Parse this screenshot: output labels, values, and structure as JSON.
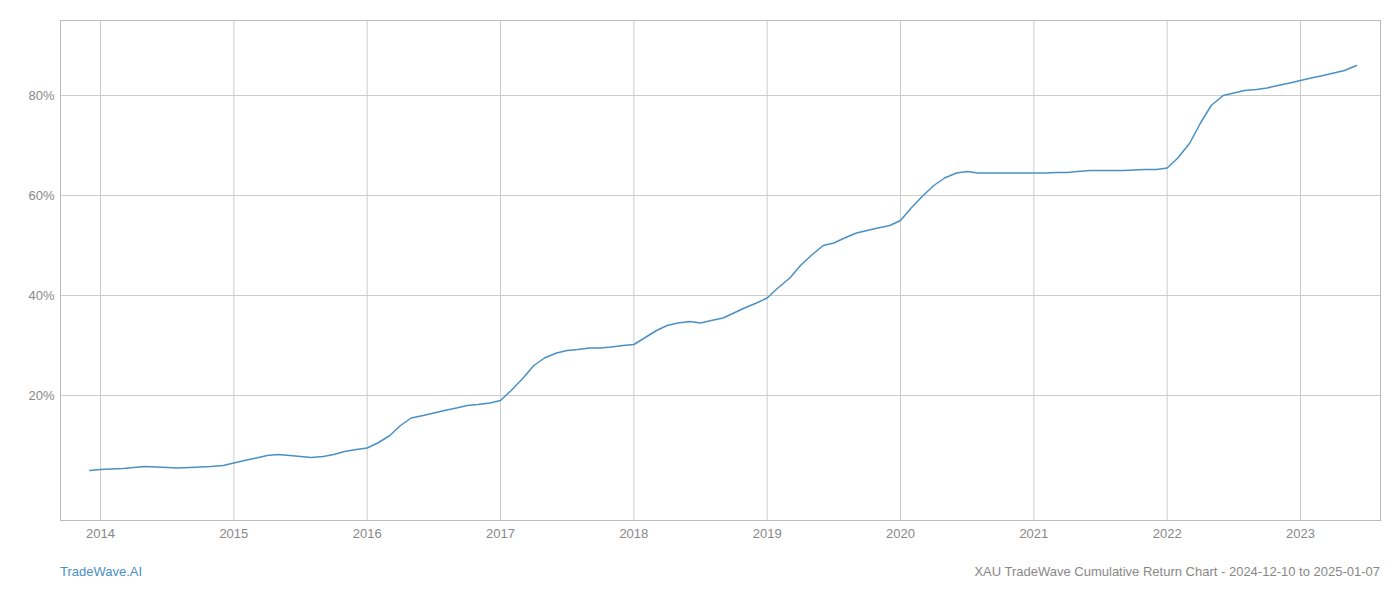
{
  "chart_data": {
    "type": "line",
    "annotations": [
      "TradeWave.AI",
      "XAU TradeWave Cumulative Return Chart - 2024-12-10 to 2025-01-07"
    ],
    "color": "#4a90c4",
    "x": [
      2013.92,
      2014.0,
      2014.08,
      2014.17,
      2014.25,
      2014.33,
      2014.42,
      2014.5,
      2014.58,
      2014.67,
      2014.75,
      2014.83,
      2014.92,
      2015.0,
      2015.08,
      2015.17,
      2015.25,
      2015.33,
      2015.42,
      2015.5,
      2015.58,
      2015.67,
      2015.75,
      2015.83,
      2015.92,
      2016.0,
      2016.08,
      2016.17,
      2016.25,
      2016.33,
      2016.42,
      2016.5,
      2016.58,
      2016.67,
      2016.75,
      2016.83,
      2016.92,
      2017.0,
      2017.08,
      2017.17,
      2017.25,
      2017.33,
      2017.42,
      2017.5,
      2017.58,
      2017.67,
      2017.75,
      2017.83,
      2017.92,
      2018.0,
      2018.08,
      2018.17,
      2018.25,
      2018.33,
      2018.42,
      2018.5,
      2018.58,
      2018.67,
      2018.75,
      2018.83,
      2018.92,
      2019.0,
      2019.08,
      2019.17,
      2019.25,
      2019.33,
      2019.42,
      2019.5,
      2019.58,
      2019.67,
      2019.75,
      2019.83,
      2019.92,
      2020.0,
      2020.08,
      2020.17,
      2020.25,
      2020.33,
      2020.42,
      2020.5,
      2020.58,
      2020.67,
      2020.75,
      2021.0,
      2021.08,
      2021.17,
      2021.25,
      2021.33,
      2021.42,
      2021.5,
      2021.58,
      2021.67,
      2021.75,
      2021.83,
      2021.92,
      2022.0,
      2022.08,
      2022.17,
      2022.25,
      2022.33,
      2022.42,
      2022.5,
      2022.58,
      2022.67,
      2022.75,
      2022.83,
      2022.92,
      2023.0,
      2023.08,
      2023.17,
      2023.25,
      2023.33,
      2023.42
    ],
    "values": [
      5.0,
      5.2,
      5.3,
      5.4,
      5.6,
      5.8,
      5.7,
      5.6,
      5.5,
      5.6,
      5.7,
      5.8,
      6.0,
      6.5,
      7.0,
      7.5,
      8.0,
      8.2,
      8.0,
      7.8,
      7.6,
      7.8,
      8.2,
      8.8,
      9.2,
      9.5,
      10.5,
      12.0,
      14.0,
      15.5,
      16.0,
      16.5,
      17.0,
      17.5,
      18.0,
      18.2,
      18.5,
      19.0,
      21.0,
      23.5,
      26.0,
      27.5,
      28.5,
      29.0,
      29.2,
      29.5,
      29.5,
      29.7,
      30.0,
      30.2,
      31.5,
      33.0,
      34.0,
      34.5,
      34.8,
      34.5,
      35.0,
      35.5,
      36.5,
      37.5,
      38.5,
      39.5,
      41.5,
      43.5,
      46.0,
      48.0,
      50.0,
      50.5,
      51.5,
      52.5,
      53.0,
      53.5,
      54.0,
      55.0,
      57.5,
      60.0,
      62.0,
      63.5,
      64.5,
      64.8,
      64.5,
      64.5,
      64.5,
      64.5,
      64.5,
      64.6,
      64.6,
      64.8,
      65.0,
      65.0,
      65.0,
      65.0,
      65.1,
      65.2,
      65.2,
      65.5,
      67.5,
      70.5,
      74.5,
      78.0,
      80.0,
      80.5,
      81.0,
      81.2,
      81.5,
      82.0,
      82.5,
      83.0,
      83.5,
      84.0,
      84.5,
      85.0,
      86.0
    ],
    "xlim": [
      2013.7,
      2023.6
    ],
    "ylim": [
      -5,
      95
    ],
    "xticks": [
      2014,
      2015,
      2016,
      2017,
      2018,
      2019,
      2020,
      2021,
      2022,
      2023
    ],
    "yticks": [
      {
        "value": 20,
        "label": "20%"
      },
      {
        "value": 40,
        "label": "40%"
      },
      {
        "value": 60,
        "label": "60%"
      },
      {
        "value": 80,
        "label": "80%"
      }
    ],
    "grid": true
  }
}
